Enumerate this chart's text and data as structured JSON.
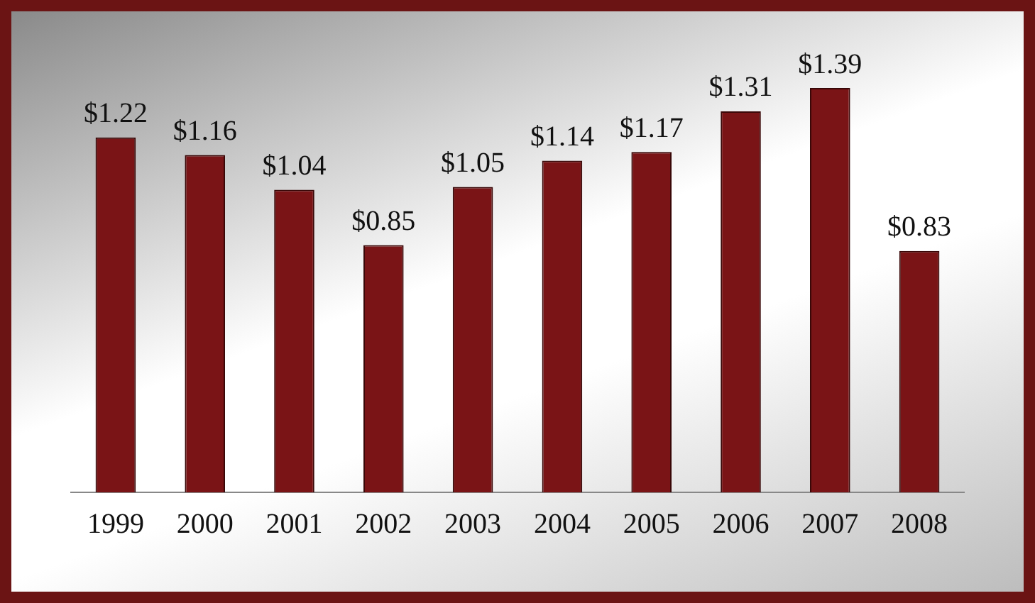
{
  "chart_data": {
    "type": "bar",
    "categories": [
      "1999",
      "2000",
      "2001",
      "2002",
      "2003",
      "2004",
      "2005",
      "2006",
      "2007",
      "2008"
    ],
    "values": [
      1.22,
      1.16,
      1.04,
      0.85,
      1.05,
      1.14,
      1.17,
      1.31,
      1.39,
      0.83
    ],
    "value_labels": [
      "$1.22",
      "$1.16",
      "$1.04",
      "$0.85",
      "$1.05",
      "$1.14",
      "$1.17",
      "$1.31",
      "$1.39",
      "$0.83"
    ],
    "color": "#7a1416",
    "grid": false,
    "legend": false
  }
}
